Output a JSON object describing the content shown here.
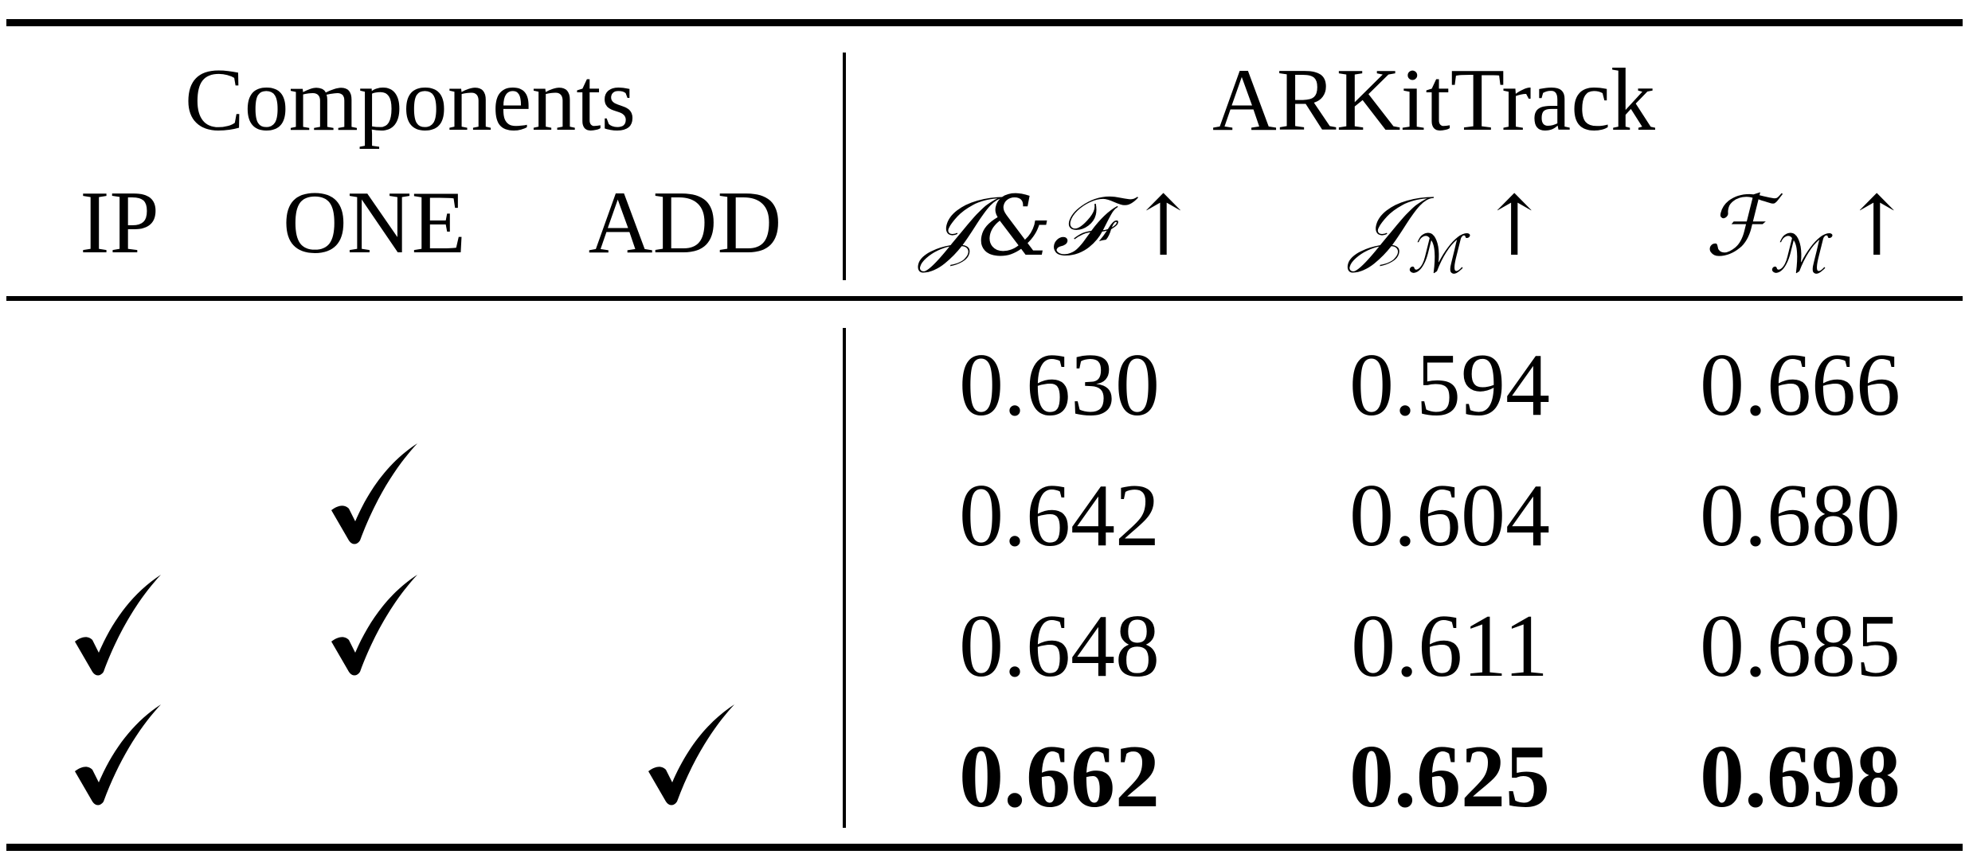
{
  "table": {
    "group_headers": {
      "components": "Components",
      "dataset": "ARKitTrack"
    },
    "component_columns": [
      "IP",
      "ONE",
      "ADD"
    ],
    "metric_columns": [
      {
        "main": "𝒥&ℱ",
        "sub": "",
        "arrow": "↑"
      },
      {
        "main": "𝒥",
        "sub": "ℳ",
        "arrow": "↑"
      },
      {
        "main": "ℱ",
        "sub": "ℳ",
        "arrow": "↑"
      }
    ],
    "check_glyph": "✓",
    "rows": [
      {
        "ip": false,
        "one": false,
        "add": false,
        "values": [
          "0.630",
          "0.594",
          "0.666"
        ],
        "bold": false
      },
      {
        "ip": false,
        "one": true,
        "add": false,
        "values": [
          "0.642",
          "0.604",
          "0.680"
        ],
        "bold": false
      },
      {
        "ip": true,
        "one": true,
        "add": false,
        "values": [
          "0.648",
          "0.611",
          "0.685"
        ],
        "bold": false
      },
      {
        "ip": true,
        "one": false,
        "add": true,
        "values": [
          "0.662",
          "0.625",
          "0.698"
        ],
        "bold": true
      }
    ]
  }
}
